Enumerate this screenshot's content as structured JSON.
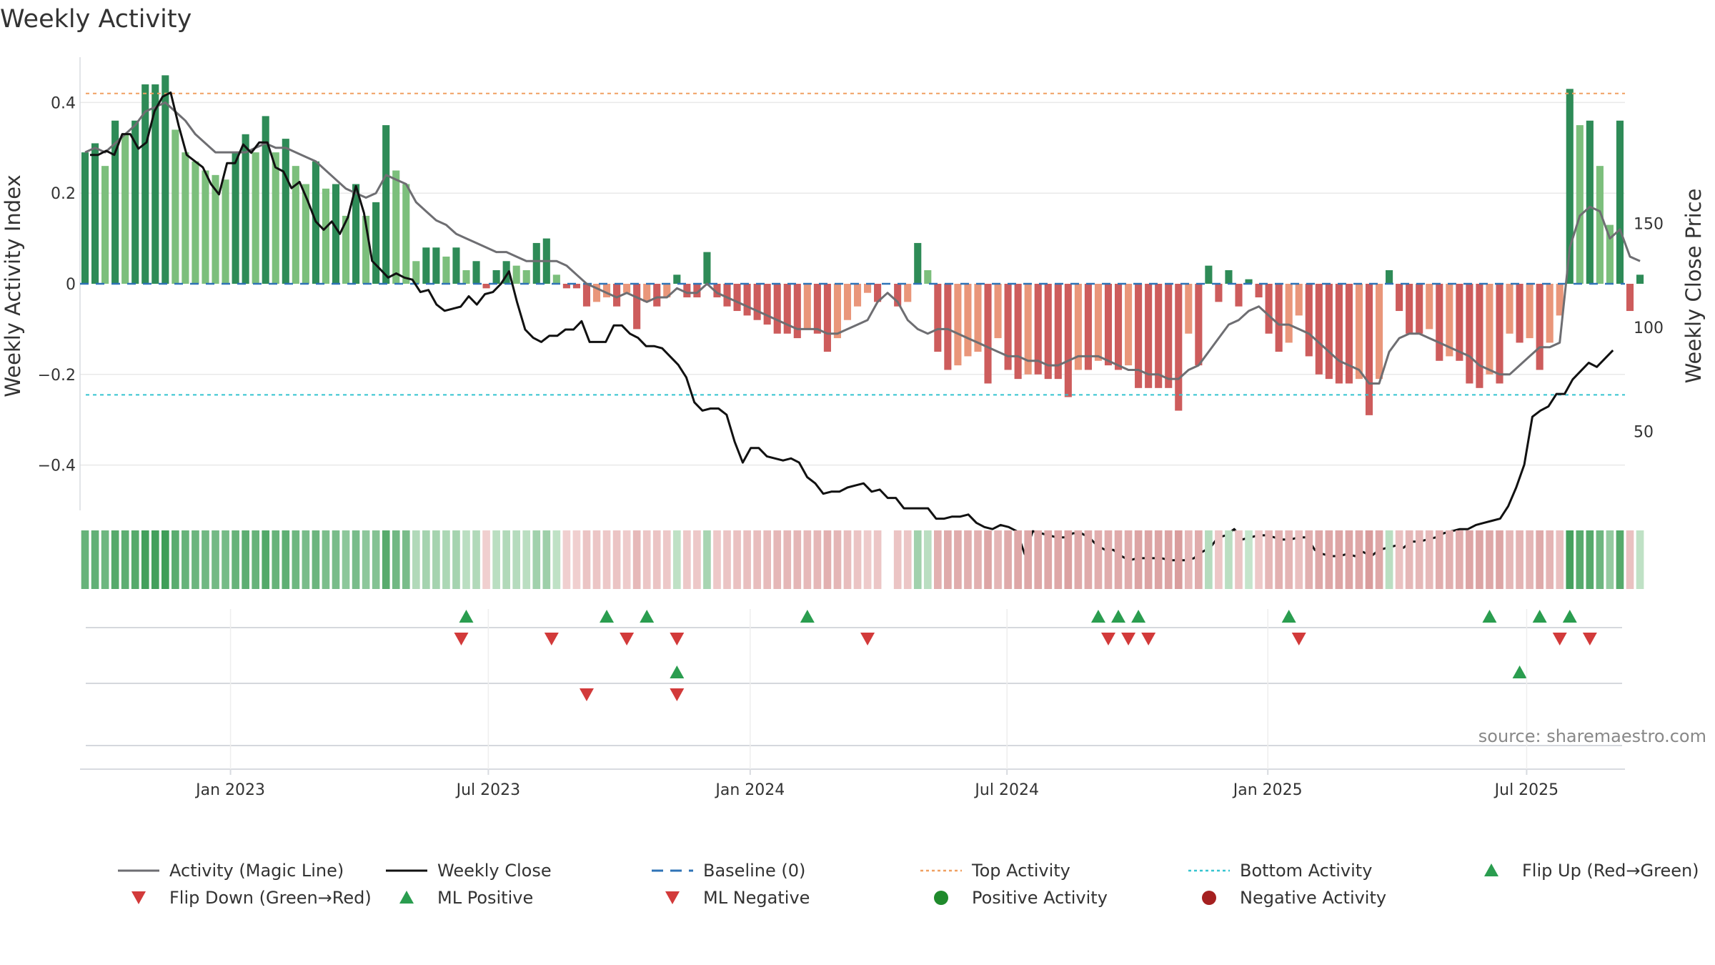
{
  "chart_data": {
    "type": "bar",
    "title": "Weekly Activity",
    "ylabel": "Weekly Activity Index",
    "y2label": "Weekly Close Price",
    "ylim": [
      -0.5,
      0.5
    ],
    "y2lim": [
      12,
      230
    ],
    "yticks": [
      0.4,
      0.2,
      0,
      -0.2,
      -0.4
    ],
    "ytick_labels": [
      "0.4",
      "0.2",
      "0",
      "−0.2",
      "−0.4"
    ],
    "y2ticks": [
      150,
      100,
      50
    ],
    "y2tick_labels": [
      "150",
      "100",
      "50"
    ],
    "xlim_weeks": [
      0,
      154
    ],
    "xticks": [
      {
        "label": "Jan 2023",
        "week": 15
      },
      {
        "label": "Jul 2023",
        "week": 40.7
      },
      {
        "label": "Jan 2024",
        "week": 66.8
      },
      {
        "label": "Jul 2024",
        "week": 92.4
      },
      {
        "label": "Jan 2025",
        "week": 118.4
      },
      {
        "label": "Jul 2025",
        "week": 144.2
      }
    ],
    "top_activity": 0.42,
    "bottom_activity": -0.245,
    "activity": [
      0.29,
      0.31,
      0.26,
      0.36,
      0.33,
      0.36,
      0.44,
      0.44,
      0.46,
      0.34,
      0.29,
      0.27,
      0.25,
      0.24,
      0.23,
      0.29,
      0.33,
      0.29,
      0.37,
      0.29,
      0.32,
      0.26,
      0.22,
      0.27,
      0.21,
      0.22,
      0.15,
      0.22,
      0.15,
      0.18,
      0.35,
      0.25,
      0.22,
      0.05,
      0.08,
      0.08,
      0.06,
      0.08,
      0.03,
      0.05,
      -0.01,
      0.03,
      0.05,
      0.04,
      0.03,
      0.09,
      0.1,
      0.02,
      -0.01,
      -0.01,
      -0.05,
      -0.04,
      -0.03,
      -0.05,
      -0.02,
      -0.1,
      -0.04,
      -0.05,
      -0.03,
      0.02,
      -0.03,
      -0.03,
      0.07,
      -0.03,
      -0.05,
      -0.06,
      -0.07,
      -0.08,
      -0.09,
      -0.11,
      -0.11,
      -0.12,
      -0.1,
      -0.11,
      -0.15,
      -0.12,
      -0.08,
      -0.05,
      -0.02,
      -0.04,
      null,
      -0.05,
      -0.04,
      0.09,
      0.03,
      -0.15,
      -0.19,
      -0.18,
      -0.16,
      -0.15,
      -0.22,
      -0.12,
      -0.19,
      -0.21,
      -0.2,
      -0.2,
      -0.21,
      -0.21,
      -0.25,
      -0.19,
      -0.19,
      -0.17,
      -0.18,
      -0.19,
      -0.18,
      -0.23,
      -0.23,
      -0.23,
      -0.23,
      -0.28,
      -0.11,
      -0.18,
      0.04,
      -0.04,
      0.03,
      -0.05,
      0.01,
      -0.03,
      -0.11,
      -0.15,
      -0.13,
      -0.07,
      -0.16,
      -0.2,
      -0.21,
      -0.22,
      -0.22,
      -0.21,
      -0.29,
      -0.21,
      0.03,
      -0.06,
      -0.11,
      -0.11,
      -0.1,
      -0.17,
      -0.16,
      -0.17,
      -0.22,
      -0.23,
      -0.2,
      -0.22,
      -0.11,
      -0.13,
      -0.12,
      -0.19,
      -0.13,
      -0.07,
      0.43,
      0.35,
      0.36,
      0.26,
      0.13,
      0.36,
      -0.06,
      0.02
    ],
    "magic_line": [
      0.29,
      0.3,
      0.29,
      0.31,
      0.33,
      0.35,
      0.38,
      0.39,
      0.4,
      0.38,
      0.36,
      0.33,
      0.31,
      0.29,
      0.29,
      0.29,
      0.29,
      0.3,
      0.31,
      0.3,
      0.3,
      0.29,
      0.28,
      0.27,
      0.25,
      0.23,
      0.21,
      0.2,
      0.19,
      0.2,
      0.24,
      0.23,
      0.22,
      0.18,
      0.16,
      0.14,
      0.13,
      0.11,
      0.1,
      0.09,
      0.08,
      0.07,
      0.07,
      0.06,
      0.05,
      0.05,
      0.05,
      0.05,
      0.04,
      0.02,
      0.0,
      -0.01,
      -0.02,
      -0.03,
      -0.02,
      -0.03,
      -0.04,
      -0.03,
      -0.03,
      -0.01,
      -0.02,
      -0.02,
      0.0,
      -0.02,
      -0.03,
      -0.04,
      -0.05,
      -0.06,
      -0.07,
      -0.08,
      -0.09,
      -0.1,
      -0.1,
      -0.1,
      -0.11,
      -0.11,
      -0.1,
      -0.09,
      -0.08,
      -0.04,
      -0.02,
      -0.04,
      -0.08,
      -0.1,
      -0.11,
      -0.1,
      -0.1,
      -0.11,
      -0.12,
      -0.13,
      -0.14,
      -0.15,
      -0.16,
      -0.16,
      -0.17,
      -0.17,
      -0.18,
      -0.18,
      -0.17,
      -0.16,
      -0.16,
      -0.16,
      -0.17,
      -0.18,
      -0.19,
      -0.19,
      -0.2,
      -0.2,
      -0.21,
      -0.21,
      -0.19,
      -0.18,
      -0.15,
      -0.12,
      -0.09,
      -0.08,
      -0.06,
      -0.05,
      -0.07,
      -0.09,
      -0.09,
      -0.1,
      -0.11,
      -0.13,
      -0.15,
      -0.17,
      -0.18,
      -0.19,
      -0.22,
      -0.22,
      -0.15,
      -0.12,
      -0.11,
      -0.11,
      -0.12,
      -0.13,
      -0.14,
      -0.15,
      -0.16,
      -0.18,
      -0.19,
      -0.2,
      -0.2,
      -0.18,
      -0.16,
      -0.14,
      -0.14,
      -0.13,
      0.08,
      0.15,
      0.17,
      0.16,
      0.1,
      0.12,
      0.06,
      0.05
    ],
    "weekly_close": [
      183,
      183,
      185,
      183,
      193,
      193,
      186,
      189,
      204,
      211,
      213,
      197,
      183,
      180,
      177,
      169,
      164,
      179,
      179,
      188,
      184,
      189,
      189,
      177,
      175,
      167,
      170,
      161,
      151,
      147,
      151,
      145,
      153,
      168,
      155,
      132,
      128,
      124,
      126,
      124,
      123,
      117,
      118,
      111,
      108,
      109,
      110,
      115,
      111,
      116,
      117,
      121,
      127,
      112,
      99,
      95,
      93,
      96,
      96,
      99,
      99,
      103,
      93,
      93,
      93,
      101,
      101,
      97,
      95,
      91,
      91,
      90,
      86,
      82,
      76,
      64,
      60,
      61,
      61,
      58,
      45,
      35,
      42,
      42,
      38,
      37,
      36,
      37,
      35,
      28,
      25,
      20,
      21,
      21,
      23,
      24,
      25,
      21,
      22,
      18,
      18,
      13,
      13,
      13,
      13,
      8,
      8,
      9,
      9,
      10,
      6,
      4,
      3,
      5,
      4,
      2,
      -9,
      2,
      1,
      0,
      -1,
      -1,
      1,
      1,
      -1,
      -5,
      -7,
      -7,
      -10,
      -12,
      -11,
      -11,
      -11,
      -11,
      -12,
      -12,
      -12,
      -11,
      -8,
      -6,
      -1,
      0,
      3,
      -2,
      -1,
      0,
      0,
      -1,
      -2,
      -2,
      -1,
      -1,
      -7,
      -9,
      -10,
      -10,
      -9,
      -10,
      -8,
      -10,
      -7,
      -6,
      -5,
      -6,
      -3,
      -3,
      -2,
      -1,
      1,
      2,
      3,
      3,
      5,
      6,
      7,
      8,
      14,
      23,
      34,
      57,
      60,
      62,
      68,
      68,
      75,
      79,
      83,
      81,
      85,
      89
    ],
    "gap_weeks": [
      80
    ],
    "flip_up_weeks": [
      38.5,
      52.5,
      56.5,
      72.5,
      101.5,
      103.5,
      105.5,
      120.5,
      140.5,
      145.5,
      148.5
    ],
    "flip_down_weeks": [
      38,
      47,
      54.5,
      59.5,
      78.5,
      102.5,
      104.5,
      106.5,
      121.5,
      147.5,
      150.5
    ],
    "ml_positive_weeks": [
      59.5,
      143.5
    ],
    "ml_negative_weeks": [
      50.5,
      59.5
    ],
    "legend": [
      {
        "label": "Activity (Magic Line)",
        "kind": "line",
        "color": "#6e6e72"
      },
      {
        "label": "Weekly Close",
        "kind": "line",
        "color": "#111111"
      },
      {
        "label": "Baseline (0)",
        "kind": "dash",
        "color": "#2f73b7"
      },
      {
        "label": "Top Activity",
        "kind": "dot",
        "color": "#f0a062"
      },
      {
        "label": "Bottom Activity",
        "kind": "dot",
        "color": "#35c4d0"
      },
      {
        "label": "Flip Up (Red→Green)",
        "kind": "tri-up",
        "color": "#2a9d4f"
      },
      {
        "label": "Flip Down (Green→Red)",
        "kind": "tri-down",
        "color": "#d23a3a"
      },
      {
        "label": "ML Positive",
        "kind": "tri-up",
        "color": "#2a9d4f"
      },
      {
        "label": "ML Negative",
        "kind": "tri-down",
        "color": "#d23a3a"
      },
      {
        "label": "Positive Activity",
        "kind": "circle",
        "color": "#1f8a2c"
      },
      {
        "label": "Negative Activity",
        "kind": "circle",
        "color": "#a52020"
      }
    ],
    "source": "source: sharemaestro.com"
  },
  "colors": {
    "pos_strong": "#2e8b57",
    "pos_light": "#7cbf7c",
    "neg_strong": "#cd5c5c",
    "neg_light": "#e9967a",
    "magic": "#6e6e72",
    "close": "#111111",
    "baseline": "#2f73b7",
    "top": "#f0a062",
    "bottom": "#35c4d0",
    "up": "#2a9d4f",
    "down": "#d23a3a",
    "grid": "#e9e9e9",
    "axis": "#d8dbe0"
  }
}
